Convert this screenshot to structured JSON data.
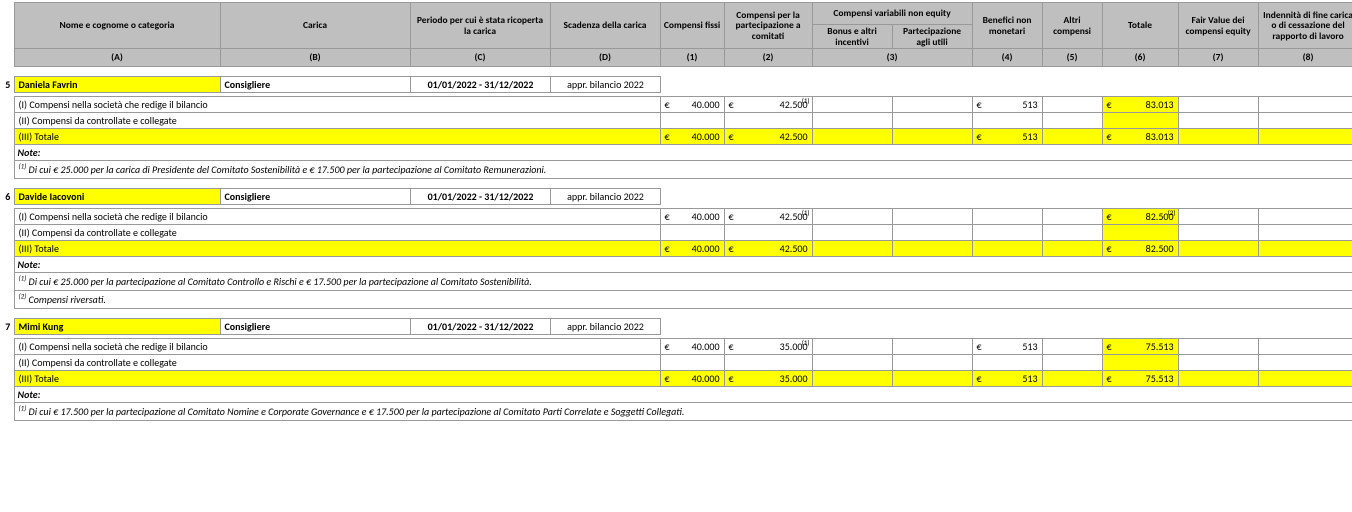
{
  "colors": {
    "header_bg": "#bfbfbf",
    "highlight": "#ffff00",
    "border": "#999999",
    "text": "#000000"
  },
  "header": {
    "A": "Nome e cognome o categoria",
    "B": "Carica",
    "C": "Periodo per cui è stata ricoperta la carica",
    "D": "Scadenza della carica",
    "c1": "Compensi fissi",
    "c2": "Compensi per la partecipazione a comitati",
    "c3": "Compensi variabili non equity",
    "c3a": "Bonus e altri incentivi",
    "c3b": "Partecipazione agli utili",
    "c4": "Benefici non monetari",
    "c5": "Altri compensi",
    "c6": "Totale",
    "c7": "Fair Value dei compensi equity",
    "c8": "Indennità di fine carica o di cessazione del rapporto di lavoro",
    "lA": "(A)",
    "lB": "(B)",
    "lC": "(C)",
    "lD": "(D)",
    "l1": "(1)",
    "l2": "(2)",
    "l3": "(3)",
    "l4": "(4)",
    "l5": "(5)",
    "l6": "(6)",
    "l7": "(7)",
    "l8": "(8)"
  },
  "row_labels": {
    "r1": "(I) Compensi nella società che redige il bilancio",
    "r2": "(II) Compensi da controllate e collegate",
    "r3": "(III) Totale",
    "note": "Note:"
  },
  "euro": "€",
  "entries": [
    {
      "idx": "5",
      "name": "Daniela Favrin",
      "role": "Consigliere",
      "period": "01/01/2022 - 31/12/2022",
      "expiry": "appr. bilancio 2022",
      "line1": {
        "c1": "40.000",
        "c2": "42.500",
        "c2_fn": "(1)",
        "c4": "513",
        "c6": "83.013"
      },
      "total": {
        "c1": "40.000",
        "c2": "42.500",
        "c4": "513",
        "c6": "83.013"
      },
      "notes": [
        {
          "sup": "(1)",
          "text": " Di cui € 25.000 per la carica di Presidente del Comitato Sostenibilità e € 17.500 per la partecipazione al Comitato Remunerazioni."
        }
      ]
    },
    {
      "idx": "6",
      "name": "Davide Iacovoni",
      "role": "Consigliere",
      "period": "01/01/2022 - 31/12/2022",
      "expiry": "appr. bilancio 2022",
      "line1": {
        "c1": "40.000",
        "c2": "42.500",
        "c2_fn": "(1)",
        "c6": "82.500",
        "c6_fn": "(2)"
      },
      "total": {
        "c1": "40.000",
        "c2": "42.500",
        "c6": "82.500"
      },
      "notes": [
        {
          "sup": "(1)",
          "text": " Di cui € 25.000 per la partecipazione al Comitato Controllo e Rischi e € 17.500 per la partecipazione al Comitato Sostenibilità."
        },
        {
          "sup": "(2)",
          "text": " Compensi riversati."
        }
      ]
    },
    {
      "idx": "7",
      "name": "Mimi Kung",
      "role": "Consigliere",
      "period": "01/01/2022 - 31/12/2022",
      "expiry": "appr. bilancio 2022",
      "line1": {
        "c1": "40.000",
        "c2": "35.000",
        "c2_fn": "(1)",
        "c4": "513",
        "c6": "75.513"
      },
      "total": {
        "c1": "40.000",
        "c2": "35.000",
        "c4": "513",
        "c6": "75.513"
      },
      "notes": [
        {
          "sup": "(1)",
          "text": " Di cui € 17.500 per la partecipazione al Comitato Nomine e Corporate Governance e € 17.500 per la partecipazione al Comitato Parti Correlate e Soggetti Collegati."
        }
      ]
    }
  ]
}
